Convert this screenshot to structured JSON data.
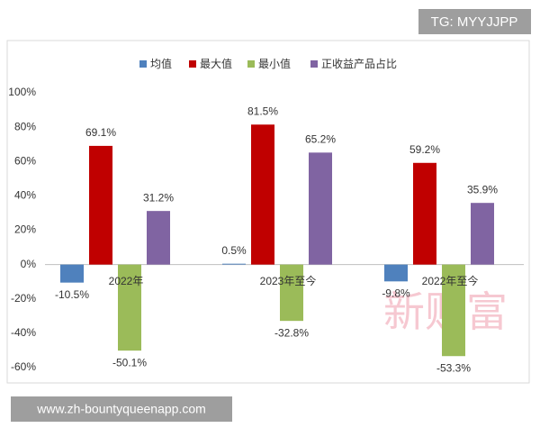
{
  "chart_data": {
    "type": "bar",
    "categories": [
      "2022年",
      "2023年至今",
      "2022年至今"
    ],
    "series": [
      {
        "name": "均值",
        "color": "#4f81bd",
        "values": [
          -10.5,
          0.5,
          -9.8
        ],
        "value_labels": [
          "-10.5%",
          "0.5%",
          "-9.8%"
        ]
      },
      {
        "name": "最大值",
        "color": "#c00000",
        "values": [
          69.1,
          81.5,
          59.2
        ],
        "value_labels": [
          "69.1%",
          "81.5%",
          "59.2%"
        ]
      },
      {
        "name": "最小值",
        "color": "#9bbb59",
        "values": [
          -50.1,
          -32.8,
          -53.3
        ],
        "value_labels": [
          "-50.1%",
          "-32.8%",
          "-53.3%"
        ]
      },
      {
        "name": "正收益产品占比",
        "color": "#8064a2",
        "values": [
          31.2,
          65.2,
          35.9
        ],
        "value_labels": [
          "31.2%",
          "65.2%",
          "35.9%"
        ]
      }
    ],
    "ylim": [
      -60,
      100
    ],
    "yticks": [
      {
        "value": -60,
        "label": "-60%"
      },
      {
        "value": -40,
        "label": "-40%"
      },
      {
        "value": -20,
        "label": "-20%"
      },
      {
        "value": 0,
        "label": "0%"
      },
      {
        "value": 20,
        "label": "20%"
      },
      {
        "value": 40,
        "label": "40%"
      },
      {
        "value": 60,
        "label": "60%"
      },
      {
        "value": 80,
        "label": "80%"
      },
      {
        "value": 100,
        "label": "100%"
      }
    ],
    "grid": false,
    "legend": "top"
  },
  "overlays": {
    "tag": "TG: MYYJJPP",
    "watermark": "新财富",
    "footer": "www.zh-bountyqueenapp.com"
  }
}
